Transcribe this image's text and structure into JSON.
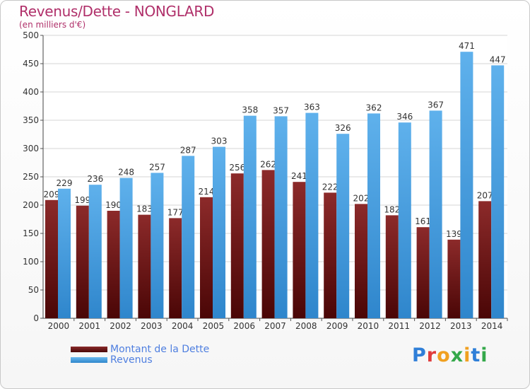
{
  "title": "Revenus/Dette - NONGLARD",
  "subtitle": "(en milliers d'€)",
  "logo": "Proxiti",
  "colors": {
    "title": "#b0306a",
    "debt": "#6e1414",
    "revenue": "#4aa3e4",
    "legend_text": "#4f7fe0"
  },
  "chart_data": {
    "type": "bar",
    "title": "Revenus/Dette - NONGLARD",
    "subtitle": "(en milliers d'€)",
    "categories": [
      "2000",
      "2001",
      "2002",
      "2003",
      "2004",
      "2005",
      "2006",
      "2007",
      "2008",
      "2009",
      "2010",
      "2011",
      "2012",
      "2013",
      "2014"
    ],
    "series": [
      {
        "name": "Montant de la Dette",
        "values": [
          209,
          199,
          190,
          183,
          177,
          214,
          256,
          262,
          241,
          222,
          202,
          182,
          161,
          139,
          207
        ]
      },
      {
        "name": "Revenus",
        "values": [
          229,
          236,
          248,
          257,
          287,
          303,
          358,
          357,
          363,
          326,
          362,
          346,
          367,
          471,
          447
        ]
      }
    ],
    "ylim": [
      0,
      500
    ],
    "yticks": [
      0,
      50,
      100,
      150,
      200,
      250,
      300,
      350,
      400,
      450,
      500
    ],
    "grid": true,
    "legend": "bottom-left"
  }
}
